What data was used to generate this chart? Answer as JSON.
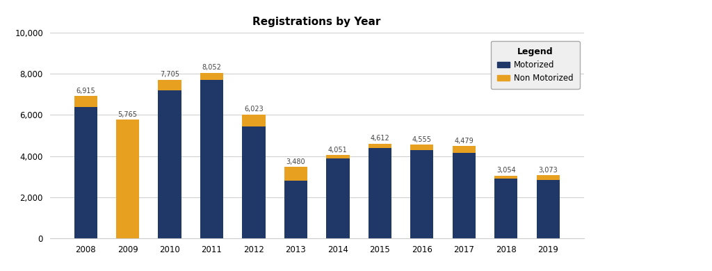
{
  "years": [
    "2008",
    "2009",
    "2010",
    "2011",
    "2012",
    "2013",
    "2014",
    "2015",
    "2016",
    "2017",
    "2018",
    "2019"
  ],
  "totals": [
    6915,
    5765,
    7705,
    8052,
    6023,
    3480,
    4051,
    4612,
    4555,
    4479,
    3054,
    3073
  ],
  "motorized": [
    6400,
    0,
    7200,
    7700,
    5450,
    2800,
    3900,
    4400,
    4300,
    4150,
    2900,
    2850
  ],
  "non_motorized": [
    515,
    5765,
    505,
    352,
    573,
    680,
    151,
    212,
    255,
    329,
    154,
    223
  ],
  "motorized_color": "#1f3868",
  "non_motorized_color": "#e8a020",
  "title": "Registrations by Year",
  "ylim": [
    0,
    10000
  ],
  "yticks": [
    0,
    2000,
    4000,
    6000,
    8000,
    10000
  ],
  "background_color": "#ffffff",
  "plot_bg_color": "#ffffff",
  "grid_color": "#d0d0d0",
  "title_fontsize": 11,
  "legend_title": "Legend",
  "legend_labels": [
    "Motorized",
    "Non Motorized"
  ]
}
